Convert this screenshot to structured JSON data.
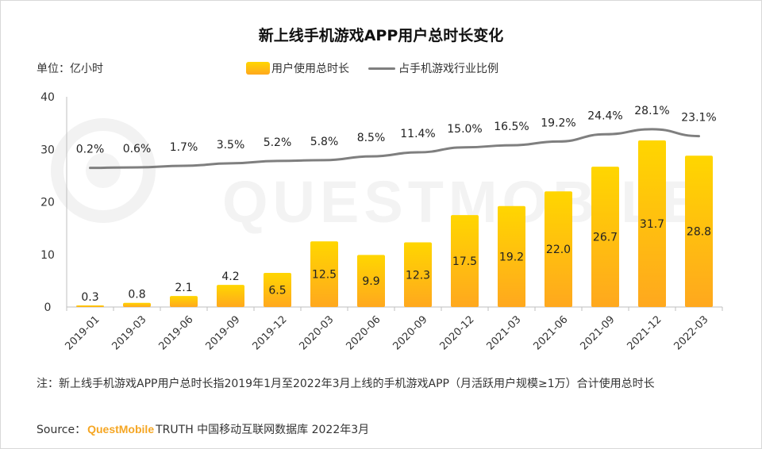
{
  "chart_data": {
    "type": "bar",
    "title": "新上线手机游戏APP用户总时长变化",
    "unit_label": "单位：亿小时",
    "categories": [
      "2019-01",
      "2019-03",
      "2019-06",
      "2019-09",
      "2019-12",
      "2020-03",
      "2020-06",
      "2020-09",
      "2020-12",
      "2021-03",
      "2021-06",
      "2021-09",
      "2021-12",
      "2022-03"
    ],
    "series": [
      {
        "name": "用户使用总时长",
        "kind": "bar",
        "values": [
          0.3,
          0.8,
          2.1,
          4.2,
          6.5,
          12.5,
          9.9,
          12.3,
          17.5,
          19.2,
          22.0,
          26.7,
          31.7,
          28.8
        ],
        "labels": [
          "0.3",
          "0.8",
          "2.1",
          "4.2",
          "6.5",
          "12.5",
          "9.9",
          "12.3",
          "17.5",
          "19.2",
          "22.0",
          "26.7",
          "31.7",
          "28.8"
        ]
      },
      {
        "name": "占手机游戏行业比例",
        "kind": "line",
        "values": [
          0.2,
          0.6,
          1.7,
          3.5,
          5.2,
          5.8,
          8.5,
          11.4,
          15.0,
          16.5,
          19.2,
          24.4,
          28.1,
          23.1
        ],
        "labels": [
          "0.2%",
          "0.6%",
          "1.7%",
          "3.5%",
          "5.2%",
          "5.8%",
          "8.5%",
          "11.4%",
          "15.0%",
          "16.5%",
          "19.2%",
          "24.4%",
          "28.1%",
          "23.1%"
        ]
      }
    ],
    "ylim": [
      0,
      40
    ],
    "yticks": [
      "0",
      "10",
      "20",
      "30",
      "40"
    ],
    "legend_position": "top-center"
  },
  "colors": {
    "bar_top": "#ffd600",
    "bar_bottom": "#ffa81e",
    "line": "#7f7f7f",
    "brand": "#f5a623"
  },
  "footnote": "注：新上线手机游戏APP用户总时长指2019年1月至2022年3月上线的手机游戏APP（月活跃用户规模≥1万）合计使用总时长",
  "source": {
    "prefix": "Source：",
    "brand": "QuestMobile",
    "rest": "TRUTH 中国移动互联网数据库 2022年3月"
  },
  "watermark": "QUESTMOBILE"
}
